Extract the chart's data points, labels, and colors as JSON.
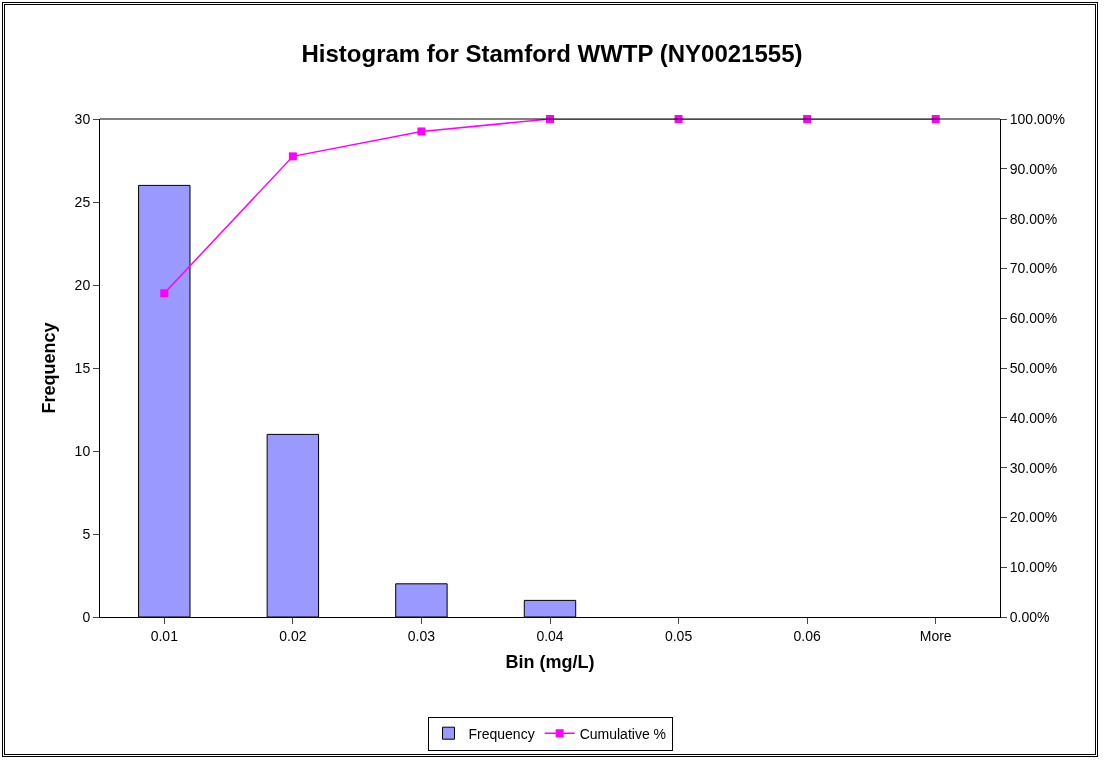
{
  "chart_data": {
    "type": "bar",
    "title": "Histogram for Stamford WWTP (NY0021555)",
    "xlabel": "Bin (mg/L)",
    "ylabel": "Frequency",
    "categories": [
      "0.01",
      "0.02",
      "0.03",
      "0.04",
      "0.05",
      "0.06",
      "More"
    ],
    "series": [
      {
        "name": "Frequency",
        "color": "#9999ff",
        "values": [
          26,
          11,
          2,
          1,
          0,
          0,
          0
        ]
      },
      {
        "name": "Cumulative %",
        "type": "line",
        "axis": "y2",
        "color": "#ff00ff",
        "marker": "square",
        "line_style": "solid",
        "values": [
          65,
          92.5,
          97.5,
          100,
          100,
          100,
          100
        ]
      }
    ],
    "ylim": [
      0,
      30
    ],
    "yticks": [
      0,
      5,
      10,
      15,
      20,
      25,
      30
    ],
    "y2lim": [
      0,
      100
    ],
    "y2ticks": [
      {
        "value": 0,
        "label": "0.00%"
      },
      {
        "value": 10,
        "label": "10.00%"
      },
      {
        "value": 20,
        "label": "20.00%"
      },
      {
        "value": 30,
        "label": "30.00%"
      },
      {
        "value": 40,
        "label": "40.00%"
      },
      {
        "value": 50,
        "label": "50.00%"
      },
      {
        "value": 60,
        "label": "60.00%"
      },
      {
        "value": 70,
        "label": "70.00%"
      },
      {
        "value": 80,
        "label": "80.00%"
      },
      {
        "value": 90,
        "label": "90.00%"
      },
      {
        "value": 100,
        "label": "100.00%"
      }
    ],
    "grid": false,
    "legend": "bottom"
  }
}
